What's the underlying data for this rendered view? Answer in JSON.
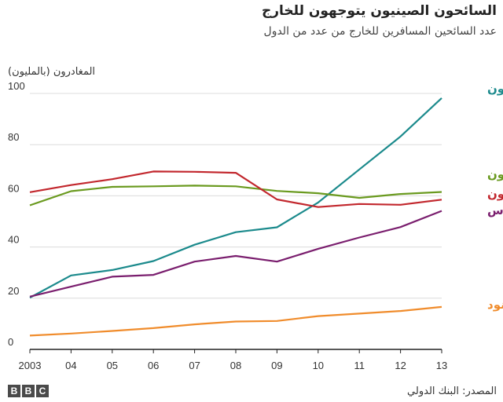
{
  "title": "السائحون الصينيون يتوجهون للخارج",
  "subtitle": "عدد السائحين المسافرين للخارج من عدد من الدول",
  "source": "المصدر: البنك الدولي",
  "logo": [
    "B",
    "B",
    "C"
  ],
  "chart_data": {
    "type": "line",
    "ylabel": "المغادرون (بالمليون)",
    "xlabel": "",
    "ylim": [
      0,
      100
    ],
    "yticks": [
      0,
      20,
      40,
      60,
      80,
      100
    ],
    "x": [
      "2003",
      "04",
      "05",
      "06",
      "07",
      "08",
      "09",
      "10",
      "11",
      "12",
      "13"
    ],
    "grid": "horizontal",
    "series": [
      {
        "name": "صينيون",
        "color": "#1b8a8c",
        "values": [
          20.2,
          28.9,
          31.0,
          34.5,
          40.9,
          45.8,
          47.7,
          57.4,
          70.3,
          83.2,
          98.2
        ]
      },
      {
        "name": "أمريكيون",
        "color": "#6a9a1f",
        "values": [
          56.3,
          61.8,
          63.5,
          63.7,
          64.0,
          63.7,
          61.9,
          61.0,
          59.2,
          60.7,
          61.5
        ]
      },
      {
        "name": "بريطانيون",
        "color": "#c2272d",
        "values": [
          61.4,
          64.2,
          66.5,
          69.5,
          69.4,
          69.0,
          58.6,
          55.6,
          56.8,
          56.5,
          58.5
        ]
      },
      {
        "name": "روس",
        "color": "#7a1e6e",
        "values": [
          20.6,
          24.5,
          28.4,
          29.1,
          34.3,
          36.5,
          34.3,
          39.3,
          43.7,
          47.8,
          54.1
        ]
      },
      {
        "name": "هنود",
        "color": "#f08c2c",
        "values": [
          5.4,
          6.2,
          7.2,
          8.3,
          9.8,
          10.9,
          11.1,
          13.0,
          14.0,
          15.0,
          16.6
        ]
      }
    ]
  }
}
